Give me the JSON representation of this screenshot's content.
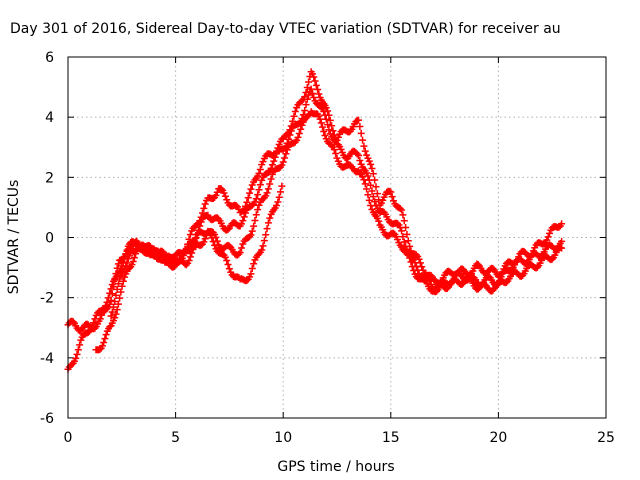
{
  "chart_data": {
    "type": "scatter",
    "title": "Day 301 of 2016, Sidereal Day-to-day VTEC variation (SDTVAR) for receiver au",
    "xlabel": "GPS time / hours",
    "ylabel": "SDTVAR / TECUs",
    "xlim": [
      0,
      25
    ],
    "ylim": [
      -6,
      6
    ],
    "xticks": [
      "0",
      "5",
      "10",
      "15",
      "20",
      "25"
    ],
    "yticks": [
      "-6",
      "-4",
      "-2",
      "0",
      "2",
      "4",
      "6"
    ],
    "grid": true,
    "marker": "+",
    "color": "#ff0000",
    "series": [
      {
        "x": [
          0,
          0.3,
          0.6,
          1.0,
          1.5,
          2.0,
          2.4,
          2.8,
          3.2,
          3.6,
          4.0,
          4.5,
          5.0,
          5.5,
          6.0,
          6.5,
          7.0,
          7.5,
          8.0,
          8.5,
          9.0,
          9.5,
          10.0,
          10.5,
          11.0,
          11.3,
          11.6,
          12.0,
          12.5,
          13.0,
          13.5,
          14.0,
          14.5,
          15.0,
          15.5,
          16.0,
          16.5,
          17.0,
          17.5,
          18.0,
          18.5,
          19.0,
          19.5,
          20.0,
          20.5,
          21.0,
          21.5,
          22.0,
          22.5,
          23.0
        ],
        "y": [
          -2.9,
          -2.9,
          -3.0,
          -3.0,
          -2.8,
          -2.0,
          -0.8,
          -0.3,
          -0.2,
          -0.4,
          -0.5,
          -0.6,
          -0.7,
          -0.3,
          0.5,
          1.2,
          1.6,
          1.2,
          0.8,
          1.5,
          2.5,
          2.8,
          3.2,
          4.0,
          4.8,
          5.4,
          5.0,
          4.2,
          3.3,
          3.6,
          3.8,
          2.5,
          1.2,
          1.5,
          0.8,
          -0.5,
          -1.0,
          -1.5,
          -1.3,
          -1.1,
          -1.2,
          -1.0,
          -1.1,
          -1.2,
          -0.9,
          -0.6,
          -0.5,
          -0.2,
          0.2,
          0.6
        ]
      },
      {
        "x": [
          0,
          0.3,
          0.6,
          1.0,
          1.5,
          2.0,
          2.4,
          2.8,
          3.2,
          3.6,
          4.0,
          4.5,
          5.0,
          5.5,
          6.0,
          6.5,
          7.0,
          7.5,
          8.0,
          8.5,
          9.0,
          9.5,
          10.0,
          10.5,
          11.0,
          11.3,
          11.6,
          12.0,
          12.5,
          13.0,
          13.5,
          14.0,
          14.5,
          15.0,
          15.5,
          16.0,
          16.5,
          17.0,
          17.5,
          18.0,
          18.5,
          19.0,
          19.5,
          20.0,
          20.5,
          21.0,
          21.5,
          22.0,
          22.5,
          23.0
        ],
        "y": [
          -4.5,
          -4.0,
          -3.5,
          -3.0,
          -2.5,
          -1.8,
          -1.0,
          -0.5,
          -0.3,
          -0.4,
          -0.5,
          -0.7,
          -0.8,
          -0.5,
          0.2,
          0.8,
          0.5,
          0.3,
          0.5,
          1.0,
          1.8,
          2.5,
          3.0,
          3.6,
          4.2,
          4.9,
          4.5,
          3.9,
          3.0,
          2.7,
          2.8,
          1.8,
          0.8,
          0.6,
          0.2,
          -0.8,
          -1.3,
          -1.7,
          -1.6,
          -1.3,
          -1.3,
          -1.5,
          -1.4,
          -1.5,
          -1.0,
          -0.8,
          -0.7,
          -0.5,
          -0.3,
          -0.2
        ]
      },
      {
        "x": [
          1.3,
          1.6,
          2.0,
          2.4,
          2.8,
          3.2,
          3.6,
          4.0,
          4.5,
          5.0,
          5.5,
          6.0,
          6.5,
          7.0,
          7.5,
          8.0,
          8.5,
          9.0,
          9.5,
          10.0,
          10.5,
          11.0,
          11.3,
          11.6,
          12.0,
          12.5,
          13.0,
          13.5,
          14.0,
          14.5,
          15.0,
          15.5,
          16.0,
          16.5,
          17.0,
          17.5,
          18.0,
          18.5,
          19.0,
          19.5,
          20.0,
          20.5,
          21.0,
          21.5,
          22.0,
          22.5,
          23.0
        ],
        "y": [
          -3.8,
          -3.5,
          -3.0,
          -2.0,
          -1.0,
          -0.5,
          -0.4,
          -0.5,
          -0.7,
          -0.8,
          -0.5,
          0.0,
          0.3,
          -0.2,
          -0.4,
          -0.5,
          0.2,
          1.2,
          2.0,
          2.6,
          3.2,
          3.8,
          4.3,
          4.0,
          3.4,
          2.6,
          2.3,
          2.3,
          1.3,
          0.3,
          0.1,
          -0.2,
          -1.0,
          -1.5,
          -1.7,
          -1.6,
          -1.5,
          -1.4,
          -1.6,
          -1.7,
          -1.6,
          -1.3,
          -1.2,
          -1.0,
          -0.8,
          -0.6,
          -0.4
        ]
      },
      {
        "x": [
          2.0,
          2.4,
          2.8,
          3.2,
          3.6,
          4.0,
          4.5,
          5.0,
          5.5,
          6.0,
          6.5,
          7.0,
          7.5,
          8.0,
          8.5,
          9.0,
          9.5,
          10.0
        ],
        "y": [
          -2.5,
          -1.5,
          -0.6,
          -0.2,
          -0.3,
          -0.5,
          -0.8,
          -0.9,
          -0.8,
          -0.3,
          0.1,
          -0.4,
          -1.0,
          -1.5,
          -1.2,
          -0.3,
          0.8,
          1.8
        ]
      }
    ]
  }
}
